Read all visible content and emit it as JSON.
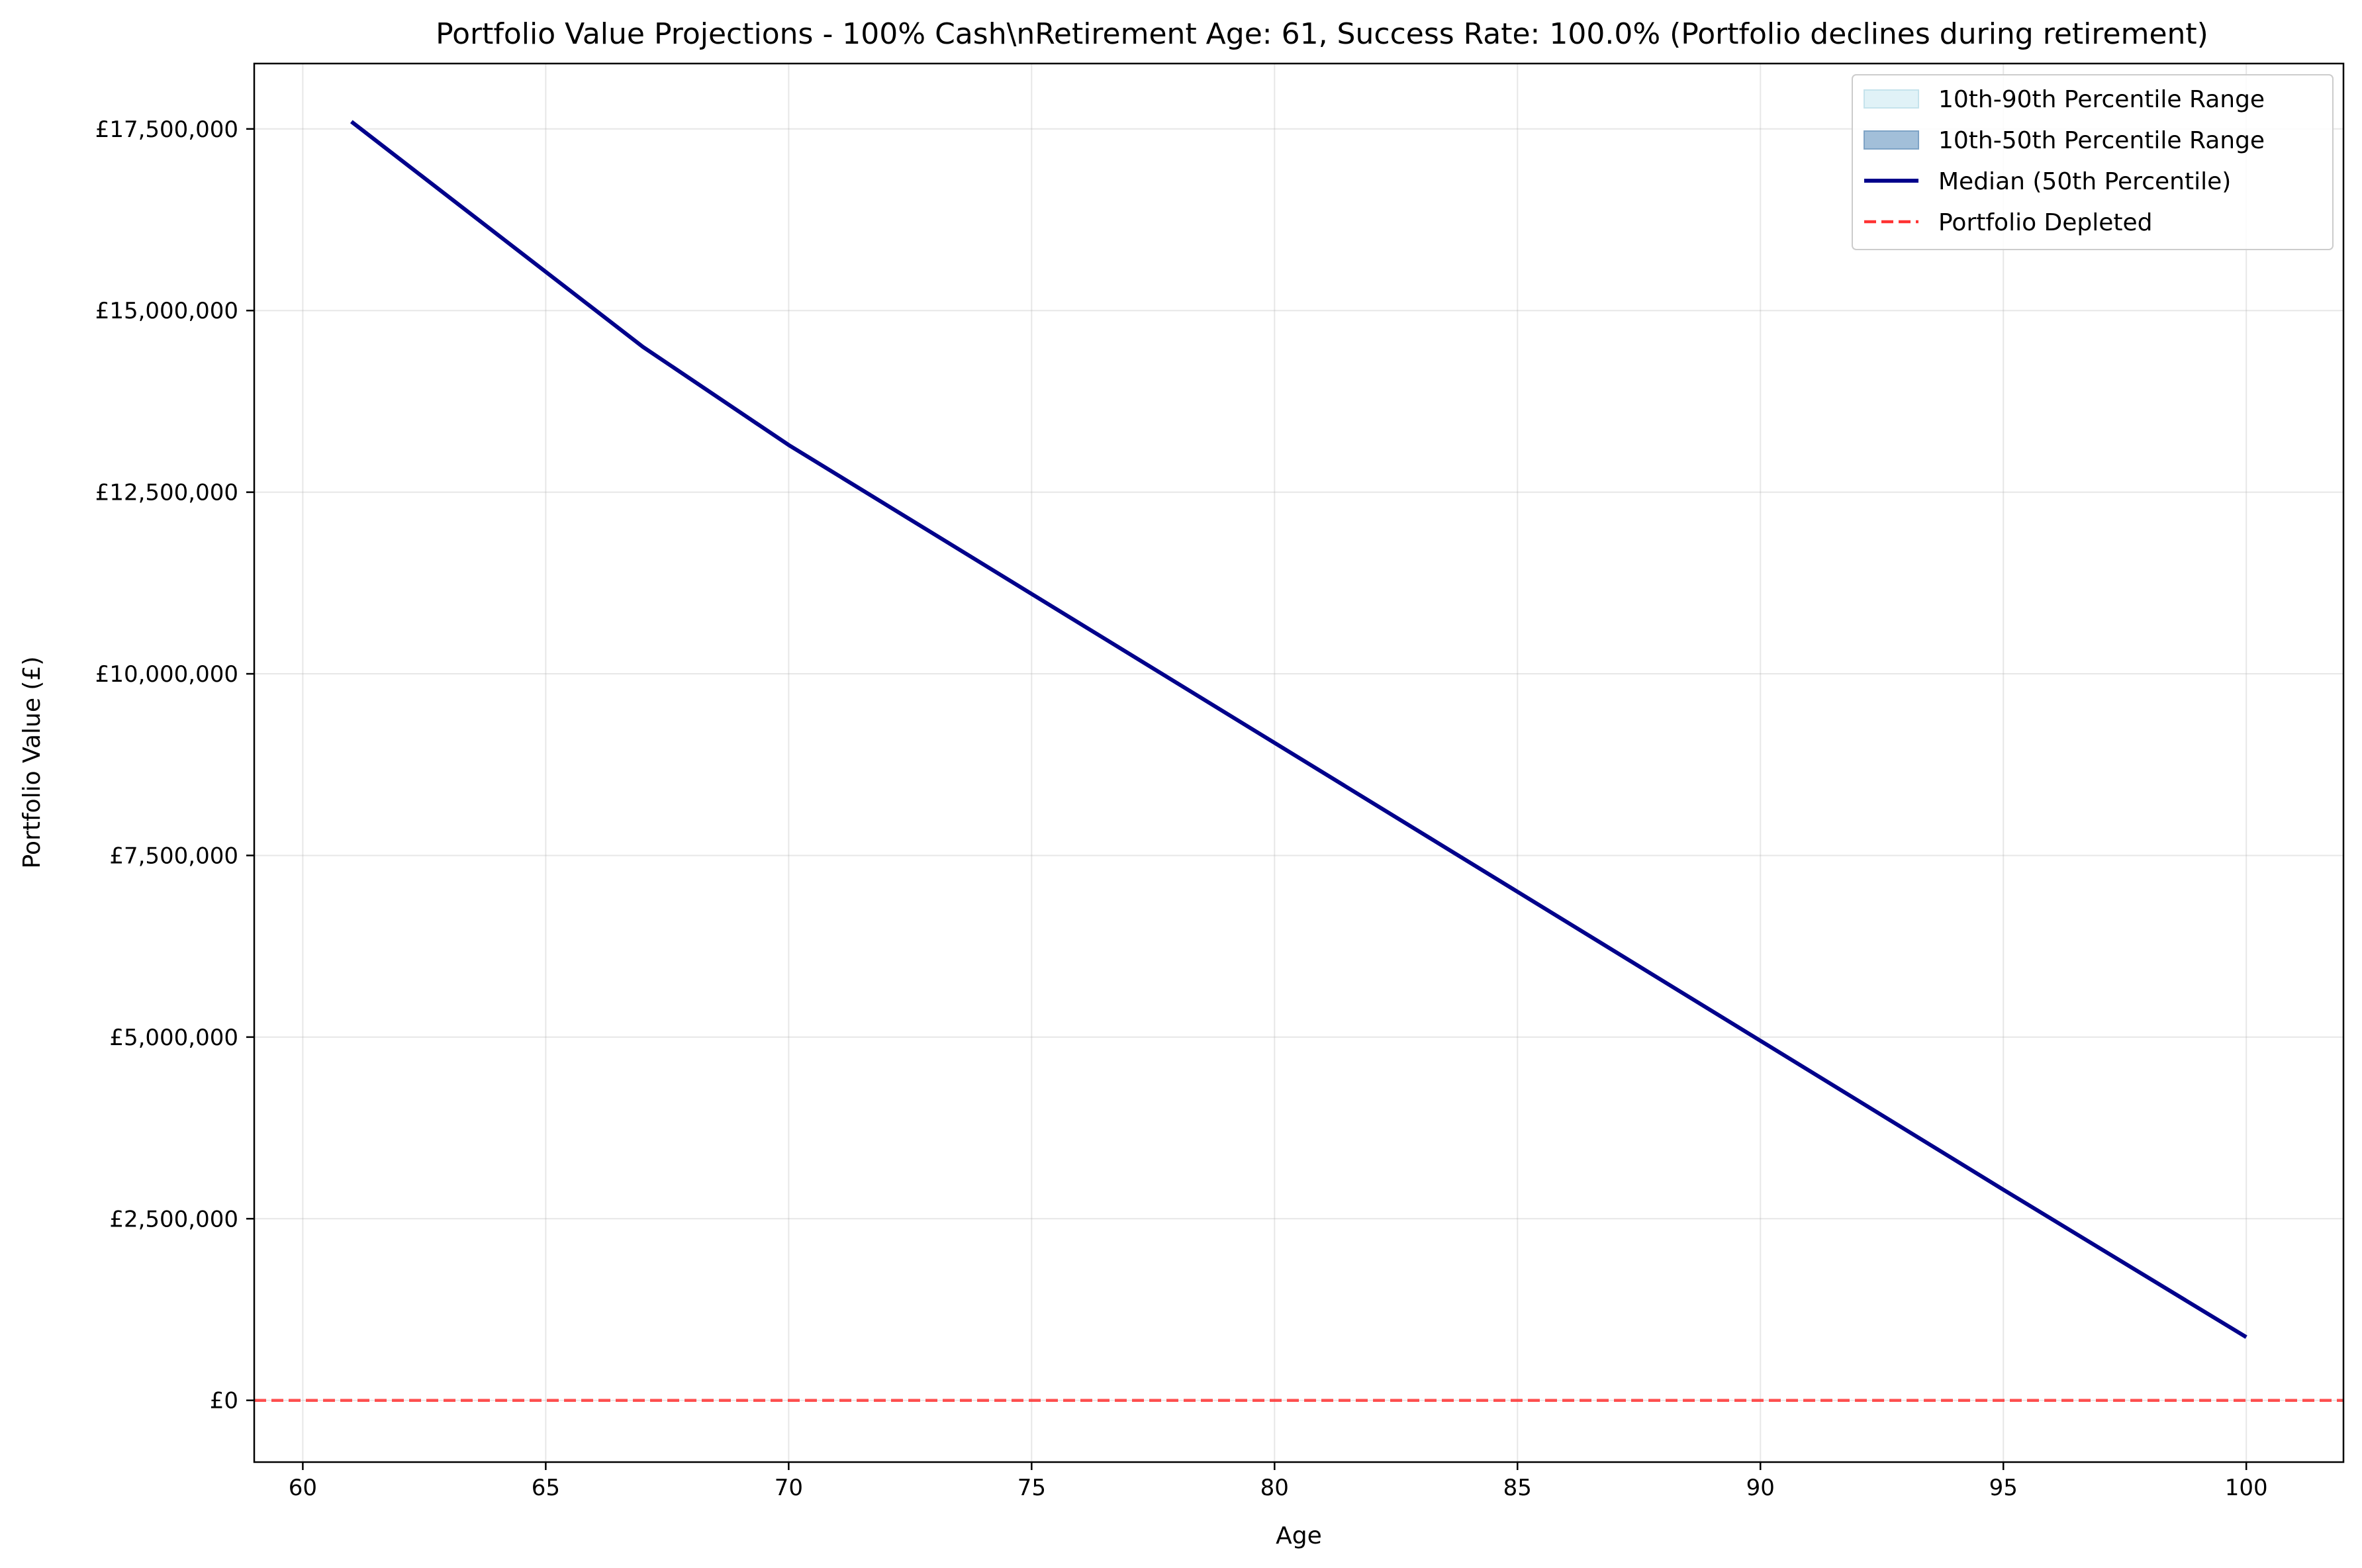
{
  "chart_data": {
    "type": "line",
    "title": "Portfolio Value Projections - 100% Cash\\nRetirement Age: 61, Success Rate: 100.0% (Portfolio declines during retirement)",
    "xlabel": "Age",
    "ylabel": "Portfolio Value (£)",
    "xlim": [
      59,
      102
    ],
    "ylim": [
      -850000,
      18400000
    ],
    "grid": true,
    "legend_position": "top-right",
    "x_ticks": [
      60,
      65,
      70,
      75,
      80,
      85,
      90,
      95,
      100
    ],
    "x_tick_labels": [
      "60",
      "65",
      "70",
      "75",
      "80",
      "85",
      "90",
      "95",
      "100"
    ],
    "y_ticks": [
      0,
      2500000,
      5000000,
      7500000,
      10000000,
      12500000,
      15000000,
      17500000
    ],
    "y_tick_labels": [
      "£0",
      "£2,500,000",
      "£5,000,000",
      "£7,500,000",
      "£10,000,000",
      "£12,500,000",
      "£15,000,000",
      "£17,500,000"
    ],
    "series": [
      {
        "name": "Median (50th Percentile)",
        "color": "#00008b",
        "style": "solid",
        "x": [
          61,
          64,
          67,
          70,
          75,
          80,
          85,
          90,
          95,
          100
        ],
        "y": [
          17600000,
          16050000,
          14500000,
          13150000,
          11100000,
          9050000,
          7000000,
          4950000,
          2900000,
          870000
        ]
      },
      {
        "name": "Portfolio Depleted",
        "color": "#ff3333",
        "style": "dashed",
        "hline": 0
      }
    ],
    "legend": [
      {
        "label": "10th-90th Percentile Range",
        "kind": "patch",
        "fill": "#e0f2f7",
        "stroke": "#c5e3ec"
      },
      {
        "label": "10th-50th Percentile Range",
        "kind": "patch",
        "fill": "#a2bfd9",
        "stroke": "#7ea3c6"
      },
      {
        "label": "Median (50th Percentile)",
        "kind": "line",
        "color": "#00008b",
        "dash": false
      },
      {
        "label": "Portfolio Depleted",
        "kind": "line",
        "color": "#ff3333",
        "dash": true
      }
    ]
  }
}
